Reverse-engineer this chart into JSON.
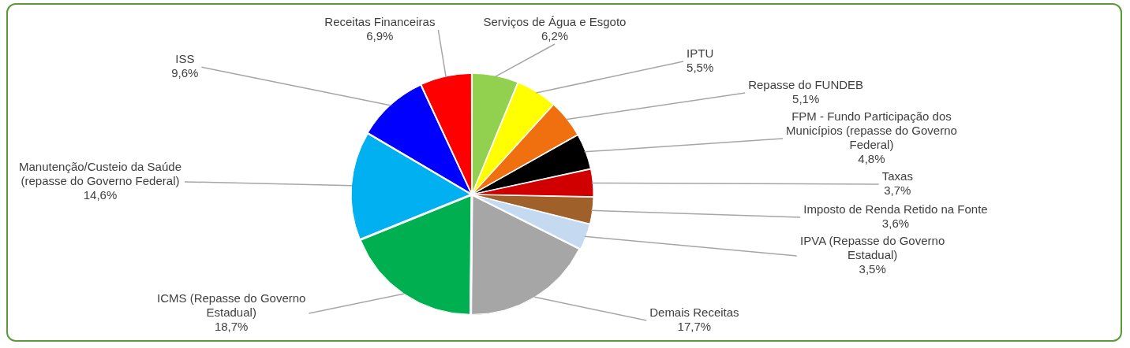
{
  "chart_data": {
    "type": "pie",
    "categories": [
      "Serviços de Água e Esgoto",
      "IPTU",
      "Repasse do FUNDEB",
      "FPM - Fundo Participação dos Municípios (repasse do Governo Federal)",
      "Taxas",
      "Imposto de Renda Retido na Fonte",
      "IPVA (Repasse do Governo Estadual)",
      "Demais Receitas",
      "ICMS (Repasse do Governo Estadual)",
      "Manutenção/Custeio da Saúde (repasse do Governo Federal)",
      "ISS",
      "Receitas Financeiras"
    ],
    "values": [
      6.2,
      5.5,
      5.1,
      4.8,
      3.7,
      3.6,
      3.5,
      17.7,
      18.7,
      14.6,
      9.6,
      6.9
    ],
    "value_labels": [
      "6,2%",
      "5,5%",
      "5,1%",
      "4,8%",
      "3,7%",
      "3,6%",
      "3,5%",
      "17,7%",
      "18,7%",
      "14,6%",
      "9,6%",
      "6,9%"
    ],
    "colors": [
      "#92d050",
      "#ffff00",
      "#f07010",
      "#000000",
      "#d00000",
      "#a0602a",
      "#c5d9f1",
      "#a6a6a6",
      "#00b050",
      "#00b0f0",
      "#0000ff",
      "#ff0000"
    ],
    "legend": false
  }
}
